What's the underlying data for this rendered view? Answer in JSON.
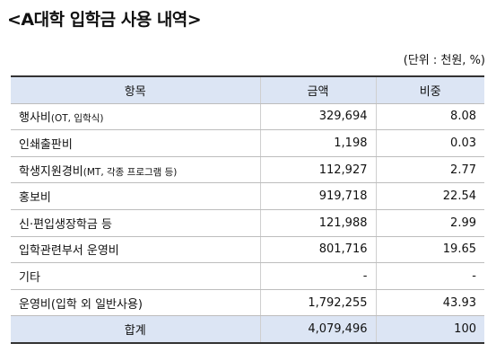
{
  "title": "<A대학 입학금 사용 내역>",
  "unit": "(단위 : 천원, %)",
  "table": {
    "headers": {
      "item": "항목",
      "amount": "금액",
      "ratio": "비중"
    },
    "rows": [
      {
        "label": "행사비",
        "note": "(OT, 입학식)",
        "amount": "329,694",
        "ratio": "8.08"
      },
      {
        "label": "인쇄출판비",
        "note": "",
        "amount": "1,198",
        "ratio": "0.03"
      },
      {
        "label": "학생지원경비",
        "note": "(MT, 각종 프로그램 등)",
        "amount": "112,927",
        "ratio": "2.77"
      },
      {
        "label": "홍보비",
        "note": "",
        "amount": "919,718",
        "ratio": "22.54"
      },
      {
        "label": "신·편입생장학금 등",
        "note": "",
        "amount": "121,988",
        "ratio": "2.99"
      },
      {
        "label": "입학관련부서 운영비",
        "note": "",
        "amount": "801,716",
        "ratio": "19.65"
      },
      {
        "label": "기타",
        "note": "",
        "amount": "-",
        "ratio": "-"
      },
      {
        "label": "운영비(입학 외 일반사용)",
        "note": "",
        "amount": "1,792,255",
        "ratio": "43.93"
      }
    ],
    "total": {
      "label": "합계",
      "amount": "4,079,496",
      "ratio": "100"
    }
  }
}
